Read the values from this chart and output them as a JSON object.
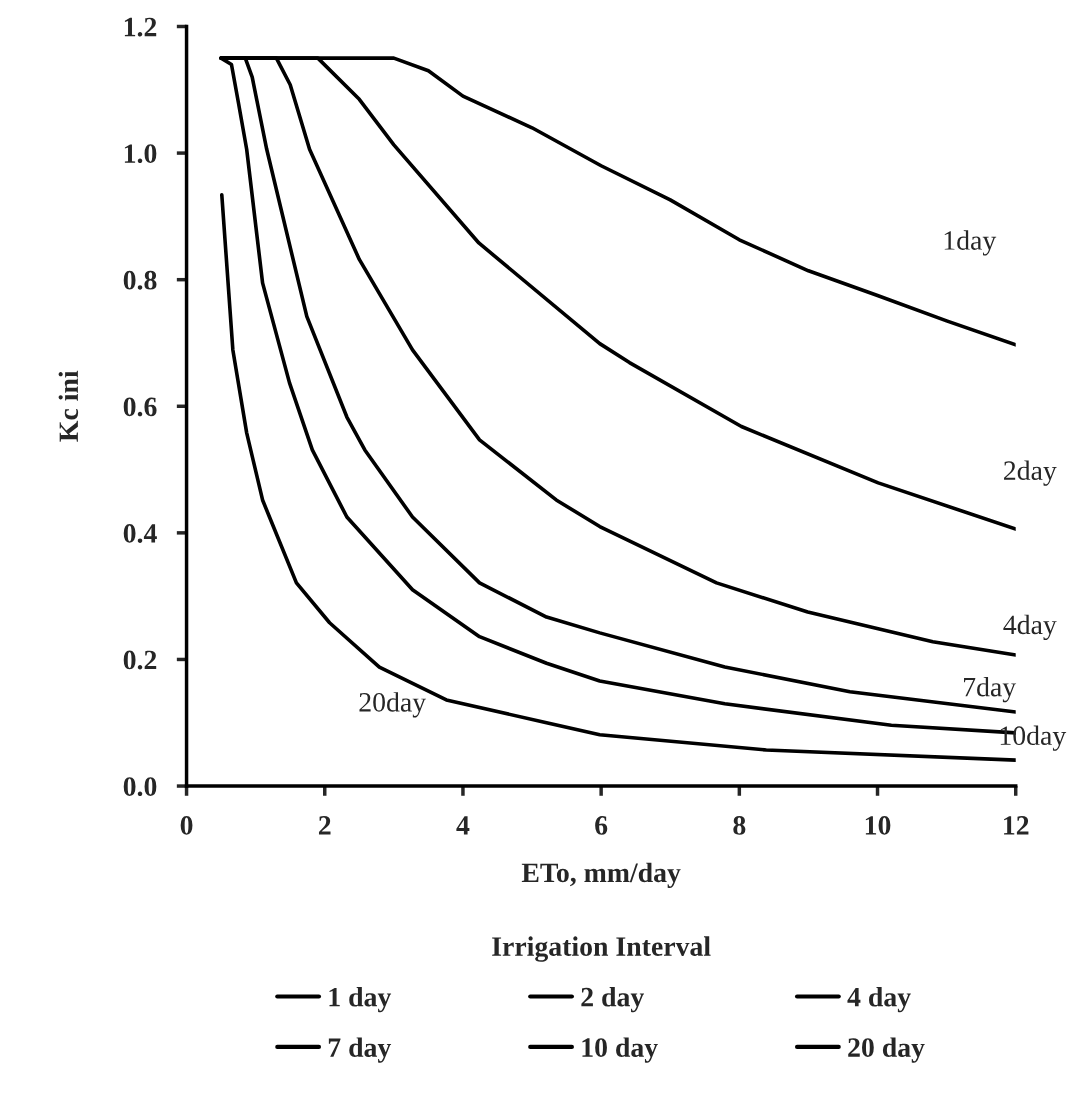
{
  "chart_data": {
    "type": "line",
    "xlabel": "ETo, mm/day",
    "ylabel": "Kc ini",
    "legend_title": "Irrigation Interval",
    "legend": "bottom",
    "grid": false,
    "marker": "none",
    "line_style": "solid",
    "xlim": [
      0,
      12
    ],
    "ylim": [
      0,
      1.2
    ],
    "xticks": [
      0,
      2,
      4,
      6,
      8,
      10,
      12
    ],
    "yticks": [
      {
        "value": 0,
        "label": "0.0"
      },
      {
        "value": 0.2,
        "label": "0.2"
      },
      {
        "value": 0.4,
        "label": "0.4"
      },
      {
        "value": 0.6,
        "label": "0.6"
      },
      {
        "value": 0.8,
        "label": "0.8"
      },
      {
        "value": 1.0,
        "label": "1.0"
      },
      {
        "value": 1.2,
        "label": "1.2"
      }
    ],
    "series": [
      {
        "name": "1 day",
        "color": "#000000",
        "x": [
          0.5,
          2.0,
          3.0,
          3.5,
          4.0,
          5.0,
          6.0,
          7.0,
          8.0,
          9.0,
          10.0,
          11.0,
          12.0
        ],
        "values": [
          1.15,
          1.15,
          1.15,
          1.13,
          1.09,
          1.04,
          0.98,
          0.926,
          0.863,
          0.814,
          0.775,
          0.735,
          0.697
        ]
      },
      {
        "name": "2 day",
        "color": "#000000",
        "x": [
          0.5,
          1.9,
          2.5,
          3.0,
          4.23,
          5.98,
          6.41,
          8.03,
          10.01,
          12.0
        ],
        "values": [
          1.15,
          1.15,
          1.085,
          1.013,
          0.858,
          0.699,
          0.669,
          0.568,
          0.479,
          0.406
        ]
      },
      {
        "name": "4 day",
        "color": "#000000",
        "x": [
          0.5,
          1.3,
          1.5,
          1.78,
          2.5,
          3.27,
          4.24,
          5.35,
          5.98,
          7.67,
          8.99,
          10.8,
          12.0
        ],
        "values": [
          1.15,
          1.15,
          1.108,
          1.006,
          0.832,
          0.689,
          0.547,
          0.452,
          0.41,
          0.321,
          0.275,
          0.228,
          0.207
        ]
      },
      {
        "name": "7 day",
        "color": "#000000",
        "x": [
          0.5,
          0.85,
          0.95,
          1.16,
          1.74,
          2.32,
          2.58,
          3.27,
          4.24,
          5.21,
          5.98,
          7.79,
          9.6,
          12.0
        ],
        "values": [
          1.15,
          1.15,
          1.12,
          1.006,
          0.742,
          0.583,
          0.531,
          0.425,
          0.321,
          0.267,
          0.242,
          0.188,
          0.149,
          0.117
        ]
      },
      {
        "name": "10 day",
        "color": "#000000",
        "x": [
          0.5,
          0.65,
          0.75,
          0.87,
          1.1,
          1.49,
          1.82,
          2.32,
          3.27,
          4.24,
          5.21,
          5.98,
          7.79,
          10.2,
          12.0
        ],
        "values": [
          1.15,
          1.14,
          1.08,
          1.006,
          0.795,
          0.637,
          0.531,
          0.425,
          0.31,
          0.236,
          0.194,
          0.166,
          0.13,
          0.096,
          0.084
        ]
      },
      {
        "name": "20 day",
        "color": "#000000",
        "x": [
          0.51,
          0.67,
          0.87,
          1.1,
          1.2,
          1.59,
          2.07,
          2.79,
          3.76,
          5.21,
          5.98,
          8.39,
          12.0
        ],
        "values": [
          0.934,
          0.689,
          0.558,
          0.452,
          0.425,
          0.321,
          0.258,
          0.188,
          0.136,
          0.1,
          0.081,
          0.057,
          0.041
        ]
      }
    ],
    "annotations": [
      "1day",
      "2day",
      "4day",
      "7day",
      "10day",
      "20day"
    ]
  }
}
